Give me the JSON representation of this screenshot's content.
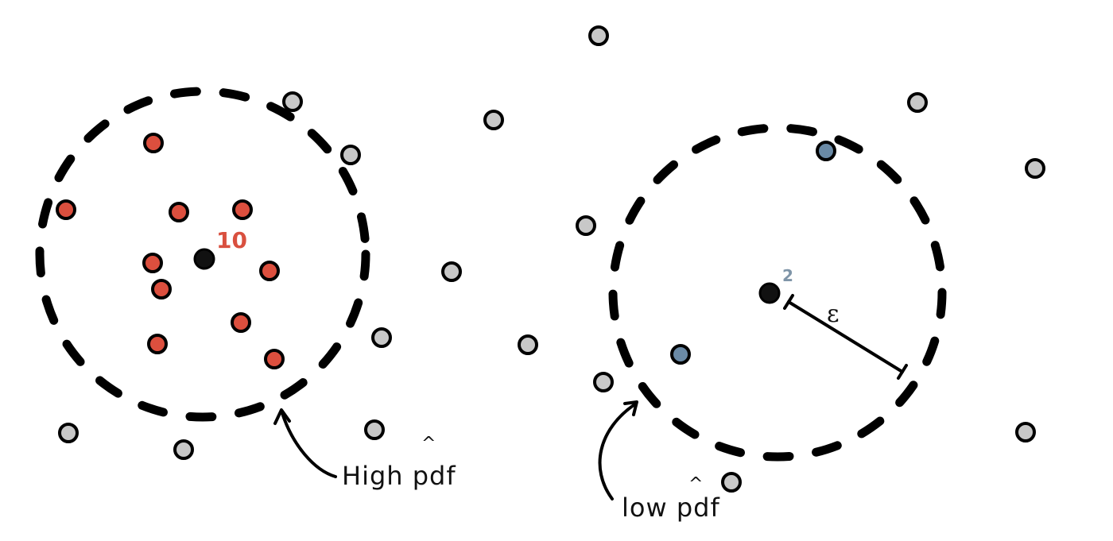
{
  "colors": {
    "outline": "#000000",
    "neighbor_red": "#dc4f3e",
    "neighbor_blue": "#6a8aa6",
    "other_grey": "#c8c8c8",
    "center_black": "#111111"
  },
  "left_panel": {
    "count_label": "10",
    "annotation": "High pdf",
    "hat": "^"
  },
  "right_panel": {
    "count_label": "2",
    "annotation": "low pdf",
    "hat": "^",
    "radius_label": "ε"
  }
}
